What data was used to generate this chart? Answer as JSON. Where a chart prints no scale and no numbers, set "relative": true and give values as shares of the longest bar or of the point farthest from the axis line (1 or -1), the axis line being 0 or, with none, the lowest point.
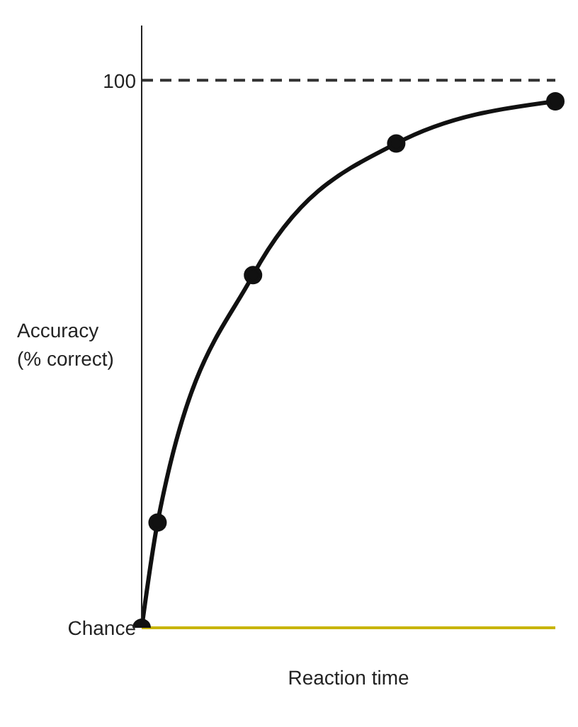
{
  "chart_data": {
    "type": "line",
    "xlabel": "Reaction time",
    "ylabel": "Accuracy\n(% correct)",
    "grid": false,
    "relative": true,
    "annotations": [
      "100",
      "Chance"
    ],
    "categories": [
      null,
      null,
      null,
      null,
      null,
      null,
      null,
      null,
      null,
      null,
      null,
      null,
      null,
      null,
      null,
      null,
      null,
      null,
      null,
      null,
      null,
      null,
      null,
      null,
      null,
      null,
      null
    ],
    "ref_lines": [
      {
        "axis": "y",
        "value": 1.04,
        "color": "#333333",
        "line_style": "dashed"
      }
    ],
    "series": [
      {
        "type": "line",
        "marker": "circle",
        "color": "#111111",
        "values": [
          0,
          0.2,
          null,
          null,
          null,
          null,
          null,
          0.67,
          null,
          null,
          null,
          null,
          null,
          null,
          null,
          null,
          0.92,
          null,
          null,
          null,
          null,
          null,
          null,
          null,
          null,
          null,
          1
        ]
      }
    ]
  }
}
